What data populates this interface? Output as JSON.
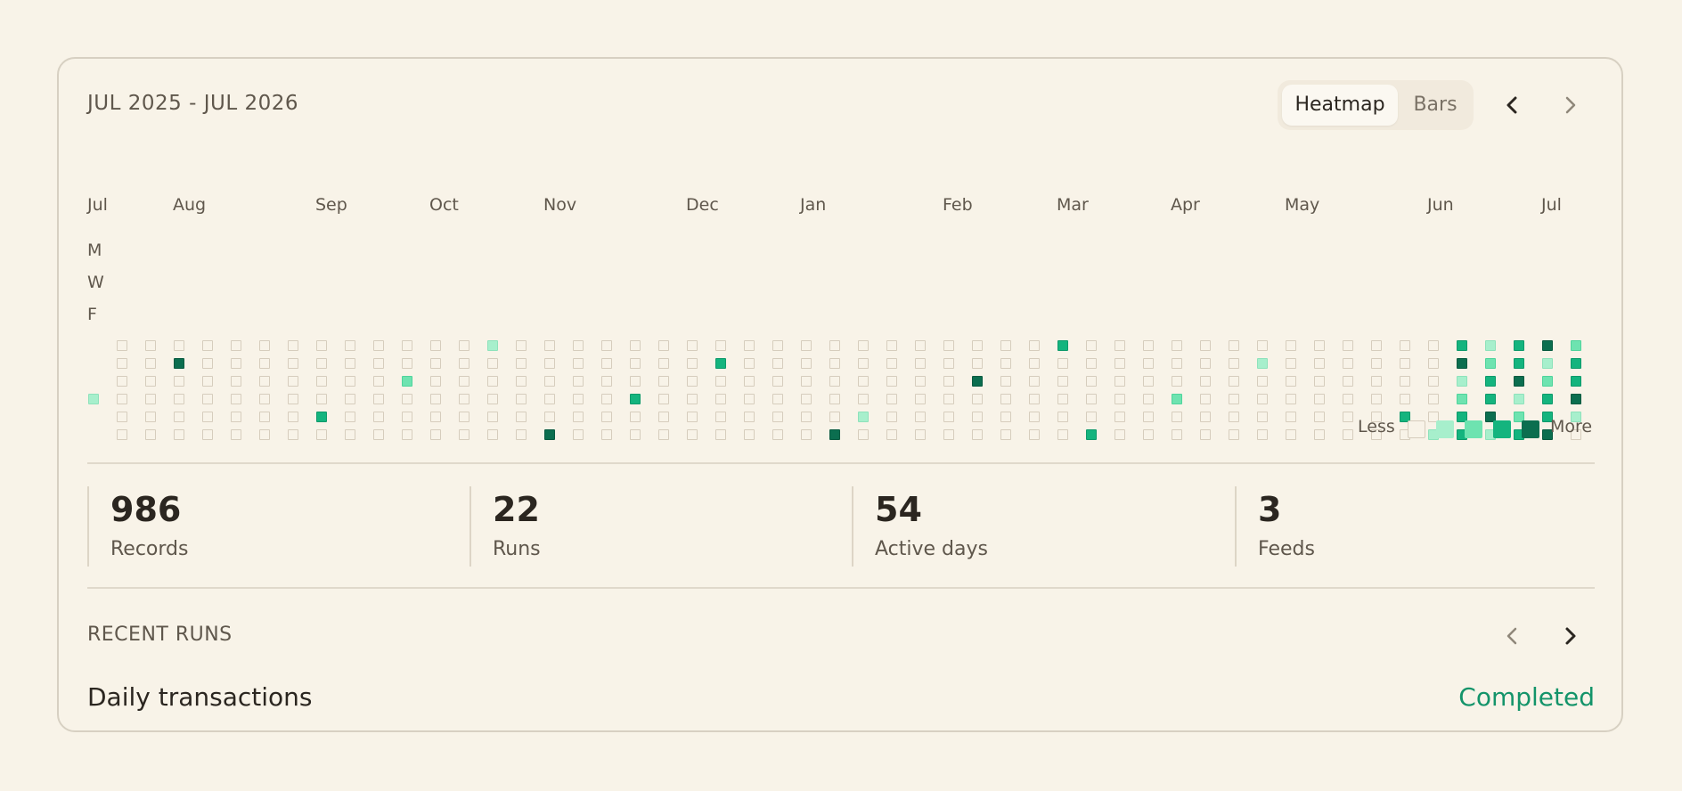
{
  "header": {
    "range_title": "JUL 2025 - JUL 2026",
    "view_toggle": {
      "options": [
        "Heatmap",
        "Bars"
      ],
      "selected": "Heatmap"
    }
  },
  "heatmap": {
    "months": [
      "Jul",
      "Aug",
      "Sep",
      "Oct",
      "Nov",
      "Dec",
      "Jan",
      "Feb",
      "Mar",
      "Apr",
      "May",
      "Jun",
      "Jul"
    ],
    "day_labels": [
      "M",
      "W",
      "F"
    ],
    "legend": {
      "less": "Less",
      "more": "More"
    },
    "colors": {
      "empty": "#f8f3e8",
      "level1": "#a7efcc",
      "level2": "#6ee3b0",
      "level3": "#14b47e",
      "level4": "#0b6e4f"
    },
    "active_cells": [
      {
        "col": 0,
        "row": 3,
        "level": 1
      },
      {
        "col": 3,
        "row": 1,
        "level": 4
      },
      {
        "col": 8,
        "row": 4,
        "level": 3
      },
      {
        "col": 11,
        "row": 2,
        "level": 2
      },
      {
        "col": 14,
        "row": 0,
        "level": 1
      },
      {
        "col": 16,
        "row": 5,
        "level": 4
      },
      {
        "col": 19,
        "row": 3,
        "level": 3
      },
      {
        "col": 22,
        "row": 1,
        "level": 3
      },
      {
        "col": 26,
        "row": 5,
        "level": 4
      },
      {
        "col": 27,
        "row": 4,
        "level": 1
      },
      {
        "col": 31,
        "row": 2,
        "level": 4
      },
      {
        "col": 34,
        "row": 0,
        "level": 3
      },
      {
        "col": 35,
        "row": 5,
        "level": 3
      },
      {
        "col": 38,
        "row": 3,
        "level": 2
      },
      {
        "col": 41,
        "row": 1,
        "level": 1
      },
      {
        "col": 46,
        "row": 4,
        "level": 3
      },
      {
        "col": 47,
        "row": 5,
        "level": 1
      },
      {
        "col": 48,
        "row": 0,
        "level": 3
      },
      {
        "col": 48,
        "row": 1,
        "level": 4
      },
      {
        "col": 48,
        "row": 2,
        "level": 1
      },
      {
        "col": 48,
        "row": 3,
        "level": 2
      },
      {
        "col": 48,
        "row": 4,
        "level": 3
      },
      {
        "col": 48,
        "row": 5,
        "level": 3
      },
      {
        "col": 49,
        "row": 0,
        "level": 1
      },
      {
        "col": 49,
        "row": 1,
        "level": 2
      },
      {
        "col": 49,
        "row": 2,
        "level": 3
      },
      {
        "col": 49,
        "row": 3,
        "level": 3
      },
      {
        "col": 49,
        "row": 4,
        "level": 4
      },
      {
        "col": 49,
        "row": 5,
        "level": 1
      },
      {
        "col": 50,
        "row": 0,
        "level": 3
      },
      {
        "col": 50,
        "row": 1,
        "level": 3
      },
      {
        "col": 50,
        "row": 2,
        "level": 4
      },
      {
        "col": 50,
        "row": 3,
        "level": 1
      },
      {
        "col": 50,
        "row": 4,
        "level": 2
      },
      {
        "col": 50,
        "row": 5,
        "level": 3
      },
      {
        "col": 51,
        "row": 0,
        "level": 4
      },
      {
        "col": 51,
        "row": 1,
        "level": 1
      },
      {
        "col": 51,
        "row": 2,
        "level": 2
      },
      {
        "col": 51,
        "row": 3,
        "level": 3
      },
      {
        "col": 51,
        "row": 4,
        "level": 3
      },
      {
        "col": 51,
        "row": 5,
        "level": 4
      },
      {
        "col": 52,
        "row": 0,
        "level": 2
      },
      {
        "col": 52,
        "row": 1,
        "level": 3
      },
      {
        "col": 52,
        "row": 2,
        "level": 3
      },
      {
        "col": 52,
        "row": 3,
        "level": 4
      },
      {
        "col": 52,
        "row": 4,
        "level": 1
      }
    ]
  },
  "stats": [
    {
      "value": "986",
      "label": "Records"
    },
    {
      "value": "22",
      "label": "Runs"
    },
    {
      "value": "54",
      "label": "Active days"
    },
    {
      "value": "3",
      "label": "Feeds"
    }
  ],
  "recent_runs": {
    "title": "RECENT RUNS",
    "items": [
      {
        "name": "Daily transactions",
        "status": "Completed",
        "status_color": "#14946a"
      }
    ]
  }
}
